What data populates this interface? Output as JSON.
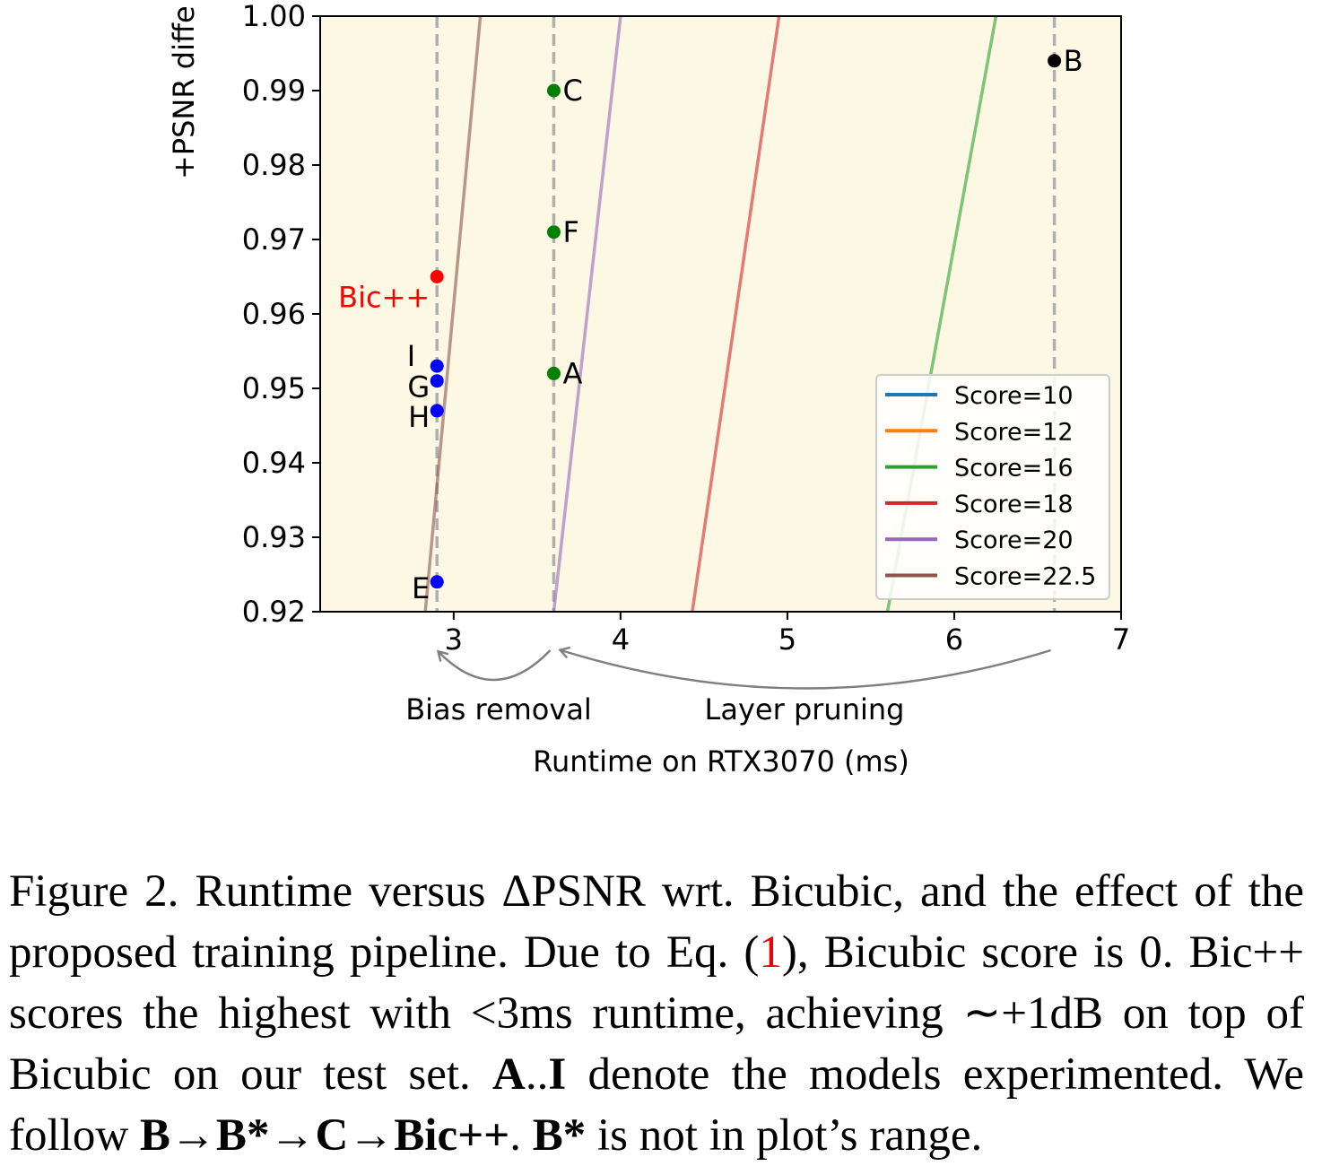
{
  "chart_data": {
    "type": "scatter",
    "xlabel": "Runtime on RTX3070 (ms)",
    "ylabel": "+PSNR diffe",
    "xlim": [
      2.2,
      7.0
    ],
    "ylim": [
      0.92,
      1.0
    ],
    "xticks": [
      "3",
      "4",
      "5",
      "6",
      "7"
    ],
    "xtick_values": [
      3,
      4,
      5,
      6,
      7
    ],
    "yticks": [
      "0.92",
      "0.93",
      "0.94",
      "0.95",
      "0.96",
      "0.97",
      "0.98",
      "0.99",
      "1.00"
    ],
    "ytick_values": [
      0.92,
      0.93,
      0.94,
      0.95,
      0.96,
      0.97,
      0.98,
      0.99,
      1.0
    ],
    "background": "#fdf8e4",
    "grid": false,
    "vlines": [
      2.9,
      3.6,
      6.6
    ],
    "points": [
      {
        "label": "B",
        "x": 6.6,
        "y": 0.994,
        "color": "#000000",
        "label_side": "right"
      },
      {
        "label": "C",
        "x": 3.6,
        "y": 0.99,
        "color": "#008000",
        "label_side": "right"
      },
      {
        "label": "F",
        "x": 3.6,
        "y": 0.971,
        "color": "#008000",
        "label_side": "right"
      },
      {
        "label": "A",
        "x": 3.6,
        "y": 0.952,
        "color": "#008000",
        "label_side": "right"
      },
      {
        "label": "Bic++",
        "x": 2.9,
        "y": 0.965,
        "color": "#ff0000",
        "label_side": "left-below"
      },
      {
        "label": "I",
        "x": 2.9,
        "y": 0.953,
        "color": "#0000ff",
        "label_side": "left-above"
      },
      {
        "label": "G",
        "x": 2.9,
        "y": 0.951,
        "color": "#0000ff",
        "label_side": "left"
      },
      {
        "label": "H",
        "x": 2.9,
        "y": 0.947,
        "color": "#0000ff",
        "label_side": "left"
      },
      {
        "label": "E",
        "x": 2.9,
        "y": 0.924,
        "color": "#0000ff",
        "label_side": "left"
      }
    ],
    "series": [
      {
        "name": "Score=10",
        "color": "#1f77b4",
        "x": [],
        "y": []
      },
      {
        "name": "Score=12",
        "color": "#ff7f0e",
        "x": [],
        "y": []
      },
      {
        "name": "Score=16",
        "color": "#2ca02c",
        "x": [
          5.6,
          6.25
        ],
        "y": [
          0.92,
          1.0
        ]
      },
      {
        "name": "Score=18",
        "color": "#d62728",
        "x": [
          4.43,
          4.95
        ],
        "y": [
          0.92,
          1.0
        ]
      },
      {
        "name": "Score=20",
        "color": "#9467bd",
        "x": [
          3.6,
          4.0
        ],
        "y": [
          0.92,
          1.0
        ]
      },
      {
        "name": "Score=22.5",
        "color": "#8c564b",
        "x": [
          2.83,
          3.16
        ],
        "y": [
          0.92,
          1.0
        ]
      }
    ],
    "legend_position": "lower-right",
    "annotations": [
      {
        "text": "Bias removal",
        "arrow_from": 3.6,
        "arrow_to": 2.9
      },
      {
        "text": "Layer pruning",
        "arrow_from": 6.6,
        "arrow_to": 3.6
      }
    ]
  },
  "caption": {
    "figure_label": "Figure 2.",
    "text_1": "Runtime versus ΔPSNR wrt. Bicubic, and the effect of the proposed training pipeline. Due to Eq. (",
    "eq_ref": "1",
    "text_2": "), Bicubic score is 0. Bic++ scores the highest with <3ms runtime, achieving ∼+1dB on top of Bicubic on our test set. ",
    "bold_models": "A",
    "dots": "..",
    "bold_models_2": "I",
    "text_3": " denote the models experimented. We follow ",
    "bold_pipeline": "B→B*→C→Bic++",
    "text_4": ". ",
    "bold_bstar": "B*",
    "text_5": " is not in plot’s range."
  }
}
